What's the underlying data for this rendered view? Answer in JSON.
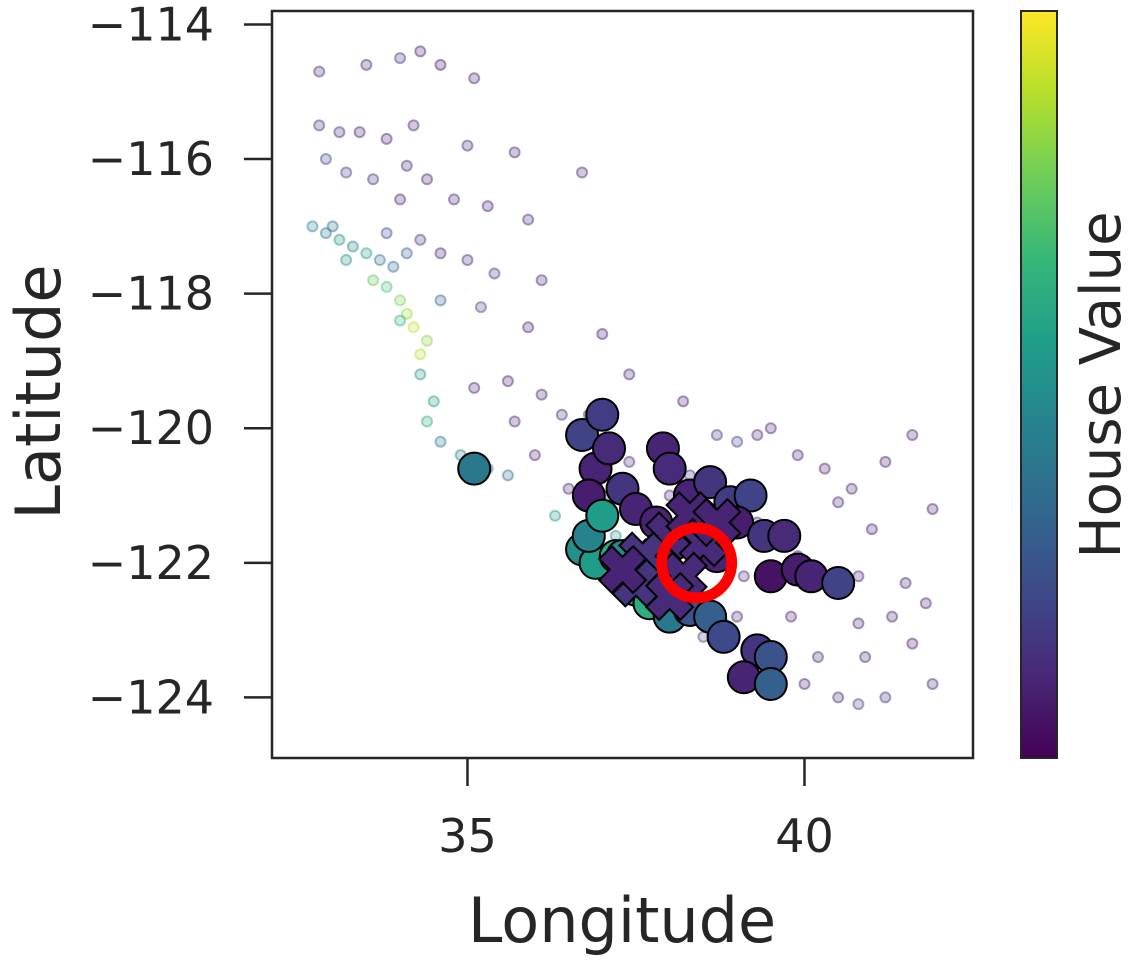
{
  "chart_data": {
    "type": "scatter",
    "xlabel": "Longitude",
    "ylabel": "Latitude",
    "colorbar_label": "House Value",
    "xlim": [
      32.1,
      42.5
    ],
    "ylim": [
      -124.9,
      -113.8
    ],
    "xticks": [
      35,
      40
    ],
    "xtick_labels": [
      "35",
      "40"
    ],
    "yticks": [
      -114,
      -116,
      -118,
      -120,
      -122,
      -124
    ],
    "ytick_labels": [
      "−114",
      "−116",
      "−118",
      "−120",
      "−122",
      "−124"
    ],
    "colormap": "viridis",
    "colormap_stops": [
      "#440154",
      "#482878",
      "#3e4a89",
      "#31688e",
      "#26828e",
      "#1f9e89",
      "#35b779",
      "#6ece58",
      "#b5de2b",
      "#fde725"
    ],
    "grid": false,
    "background_points": [
      [
        32.8,
        -114.7,
        0.12
      ],
      [
        33.5,
        -114.6,
        0.1
      ],
      [
        34.0,
        -114.5,
        0.15
      ],
      [
        34.6,
        -114.6,
        0.05
      ],
      [
        35.1,
        -114.8,
        0.1
      ],
      [
        34.3,
        -114.4,
        0.08
      ],
      [
        32.8,
        -115.5,
        0.15
      ],
      [
        33.1,
        -115.6,
        0.12
      ],
      [
        33.4,
        -115.6,
        0.1
      ],
      [
        33.8,
        -115.7,
        0.08
      ],
      [
        34.2,
        -115.5,
        0.1
      ],
      [
        35.0,
        -115.8,
        0.12
      ],
      [
        35.7,
        -115.9,
        0.1
      ],
      [
        36.7,
        -116.2,
        0.1
      ],
      [
        32.9,
        -116.0,
        0.2
      ],
      [
        33.2,
        -116.2,
        0.18
      ],
      [
        33.6,
        -116.3,
        0.15
      ],
      [
        34.1,
        -116.1,
        0.12
      ],
      [
        34.4,
        -116.3,
        0.1
      ],
      [
        34.0,
        -116.6,
        0.1
      ],
      [
        34.8,
        -116.6,
        0.1
      ],
      [
        35.3,
        -116.7,
        0.1
      ],
      [
        35.9,
        -116.9,
        0.12
      ],
      [
        32.7,
        -117.0,
        0.45
      ],
      [
        32.9,
        -117.1,
        0.4
      ],
      [
        33.1,
        -117.2,
        0.5
      ],
      [
        33.3,
        -117.3,
        0.45
      ],
      [
        33.5,
        -117.4,
        0.55
      ],
      [
        33.7,
        -117.5,
        0.4
      ],
      [
        33.9,
        -117.6,
        0.35
      ],
      [
        34.1,
        -117.4,
        0.3
      ],
      [
        33.8,
        -117.1,
        0.2
      ],
      [
        34.3,
        -117.2,
        0.15
      ],
      [
        34.6,
        -117.4,
        0.1
      ],
      [
        35.0,
        -117.5,
        0.12
      ],
      [
        35.4,
        -117.7,
        0.15
      ],
      [
        36.1,
        -117.8,
        0.1
      ],
      [
        33.0,
        -117.0,
        0.35
      ],
      [
        33.2,
        -117.5,
        0.5
      ],
      [
        33.6,
        -117.8,
        0.75
      ],
      [
        33.8,
        -117.9,
        0.7
      ],
      [
        34.0,
        -118.1,
        0.8
      ],
      [
        34.1,
        -118.3,
        0.85
      ],
      [
        34.2,
        -118.5,
        0.9
      ],
      [
        34.4,
        -118.7,
        0.82
      ],
      [
        34.3,
        -118.9,
        0.88
      ],
      [
        34.0,
        -118.4,
        0.65
      ],
      [
        34.6,
        -118.1,
        0.3
      ],
      [
        35.2,
        -118.2,
        0.2
      ],
      [
        35.9,
        -118.5,
        0.1
      ],
      [
        34.3,
        -119.2,
        0.5
      ],
      [
        34.5,
        -119.6,
        0.55
      ],
      [
        34.4,
        -119.9,
        0.6
      ],
      [
        34.6,
        -120.2,
        0.4
      ],
      [
        34.9,
        -120.4,
        0.45
      ],
      [
        35.3,
        -120.6,
        0.4
      ],
      [
        35.6,
        -120.7,
        0.35
      ],
      [
        35.1,
        -119.4,
        0.1
      ],
      [
        35.6,
        -119.3,
        0.08
      ],
      [
        36.1,
        -119.5,
        0.1
      ],
      [
        36.4,
        -119.8,
        0.12
      ],
      [
        36.8,
        -119.8,
        0.15
      ],
      [
        36.3,
        -121.3,
        0.55
      ],
      [
        36.6,
        -121.7,
        0.6
      ],
      [
        36.9,
        -121.9,
        0.5
      ],
      [
        37.4,
        -121.9,
        0.75
      ],
      [
        37.3,
        -122.2,
        0.8
      ],
      [
        37.5,
        -122.3,
        0.85
      ],
      [
        37.8,
        -122.4,
        0.7
      ],
      [
        37.9,
        -122.5,
        0.78
      ],
      [
        38.1,
        -122.5,
        0.55
      ],
      [
        37.2,
        -121.6,
        0.5
      ],
      [
        37.0,
        -120.2,
        0.1
      ],
      [
        37.4,
        -120.5,
        0.12
      ],
      [
        37.8,
        -120.4,
        0.1
      ],
      [
        38.3,
        -120.7,
        0.12
      ],
      [
        38.6,
        -120.9,
        0.15
      ],
      [
        38.9,
        -121.2,
        0.18
      ],
      [
        39.3,
        -121.4,
        0.12
      ],
      [
        39.6,
        -121.6,
        0.1
      ],
      [
        39.9,
        -121.9,
        0.1
      ],
      [
        40.2,
        -122.1,
        0.1
      ],
      [
        40.6,
        -122.4,
        0.12
      ],
      [
        40.8,
        -122.2,
        0.1
      ],
      [
        38.2,
        -119.6,
        0.08
      ],
      [
        38.7,
        -120.1,
        0.15
      ],
      [
        39.0,
        -120.2,
        0.2
      ],
      [
        39.3,
        -120.1,
        0.12
      ],
      [
        39.5,
        -120.0,
        0.1
      ],
      [
        39.9,
        -120.4,
        0.1
      ],
      [
        40.3,
        -120.6,
        0.08
      ],
      [
        40.7,
        -120.9,
        0.1
      ],
      [
        41.2,
        -120.5,
        0.08
      ],
      [
        41.6,
        -120.1,
        0.1
      ],
      [
        40.8,
        -122.9,
        0.1
      ],
      [
        41.3,
        -122.8,
        0.1
      ],
      [
        41.8,
        -122.6,
        0.1
      ],
      [
        41.6,
        -123.2,
        0.08
      ],
      [
        41.9,
        -123.8,
        0.12
      ],
      [
        41.2,
        -124.0,
        0.15
      ],
      [
        40.8,
        -124.1,
        0.2
      ],
      [
        40.5,
        -124.0,
        0.12
      ],
      [
        40.0,
        -123.8,
        0.1
      ],
      [
        39.4,
        -123.3,
        0.15
      ],
      [
        39.0,
        -123.6,
        0.12
      ],
      [
        38.8,
        -122.9,
        0.15
      ],
      [
        41.0,
        -121.5,
        0.08
      ],
      [
        40.5,
        -121.1,
        0.1
      ],
      [
        40.9,
        -123.4,
        0.1
      ],
      [
        41.5,
        -122.3,
        0.1
      ],
      [
        39.8,
        -122.8,
        0.1
      ],
      [
        40.2,
        -123.4,
        0.12
      ],
      [
        41.9,
        -121.2,
        0.08
      ],
      [
        38.5,
        -123.1,
        0.2
      ],
      [
        39.1,
        -122.2,
        0.12
      ],
      [
        36.0,
        -120.4,
        0.1
      ],
      [
        35.7,
        -119.9,
        0.1
      ],
      [
        37.1,
        -121.0,
        0.12
      ],
      [
        36.5,
        -120.9,
        0.1
      ],
      [
        37.6,
        -121.2,
        0.15
      ],
      [
        38.0,
        -121.0,
        0.12
      ],
      [
        38.4,
        -121.6,
        0.15
      ],
      [
        39.0,
        -122.8,
        0.12
      ],
      [
        37.0,
        -118.6,
        0.08
      ],
      [
        37.4,
        -119.2,
        0.1
      ]
    ],
    "highlight_points": [
      [
        36.7,
        -120.1,
        0.2
      ],
      [
        36.9,
        -120.6,
        0.1
      ],
      [
        37.1,
        -120.3,
        0.12
      ],
      [
        36.8,
        -121.0,
        0.08
      ],
      [
        37.3,
        -120.9,
        0.15
      ],
      [
        37.5,
        -121.2,
        0.1
      ],
      [
        37.0,
        -119.8,
        0.18
      ],
      [
        37.9,
        -120.3,
        0.1
      ],
      [
        38.0,
        -120.6,
        0.12
      ],
      [
        38.3,
        -121.0,
        0.1
      ],
      [
        38.6,
        -120.8,
        0.15
      ],
      [
        38.9,
        -121.1,
        0.18
      ],
      [
        39.2,
        -121.0,
        0.2
      ],
      [
        37.8,
        -121.4,
        0.1
      ],
      [
        38.1,
        -121.7,
        0.15
      ],
      [
        38.4,
        -121.5,
        0.12
      ],
      [
        38.7,
        -121.9,
        0.1
      ],
      [
        39.0,
        -121.4,
        0.08
      ],
      [
        39.4,
        -121.6,
        0.15
      ],
      [
        39.7,
        -121.6,
        0.12
      ],
      [
        39.5,
        -122.2,
        0.05
      ],
      [
        39.9,
        -122.1,
        0.08
      ],
      [
        40.1,
        -122.2,
        0.1
      ],
      [
        40.5,
        -122.3,
        0.2
      ],
      [
        36.7,
        -121.8,
        0.5
      ],
      [
        36.9,
        -122.0,
        0.55
      ],
      [
        37.2,
        -121.9,
        0.6
      ],
      [
        36.8,
        -121.6,
        0.45
      ],
      [
        37.0,
        -121.3,
        0.55
      ],
      [
        37.3,
        -121.9,
        0.48
      ],
      [
        37.5,
        -122.4,
        0.55
      ],
      [
        37.7,
        -122.6,
        0.62
      ],
      [
        38.0,
        -122.8,
        0.4
      ],
      [
        37.9,
        -122.3,
        0.3
      ],
      [
        38.3,
        -122.7,
        0.25
      ],
      [
        38.6,
        -122.8,
        0.3
      ],
      [
        38.8,
        -123.1,
        0.22
      ],
      [
        39.3,
        -123.3,
        0.15
      ],
      [
        39.5,
        -123.4,
        0.25
      ],
      [
        39.1,
        -123.7,
        0.1
      ],
      [
        39.5,
        -123.8,
        0.3
      ],
      [
        35.1,
        -120.6,
        0.4
      ]
    ],
    "cross_markers": [
      [
        37.8,
        -122.0,
        0.1
      ],
      [
        38.0,
        -121.6,
        0.12
      ],
      [
        37.6,
        -121.9,
        0.15
      ],
      [
        38.3,
        -121.3,
        0.1
      ],
      [
        38.5,
        -121.7,
        0.12
      ],
      [
        38.7,
        -121.4,
        0.1
      ],
      [
        38.2,
        -122.2,
        0.12
      ],
      [
        37.5,
        -122.3,
        0.15
      ],
      [
        38.0,
        -122.5,
        0.12
      ],
      [
        37.3,
        -122.1,
        0.1
      ]
    ],
    "target_ring": [
      38.4,
      -122.0
    ]
  }
}
